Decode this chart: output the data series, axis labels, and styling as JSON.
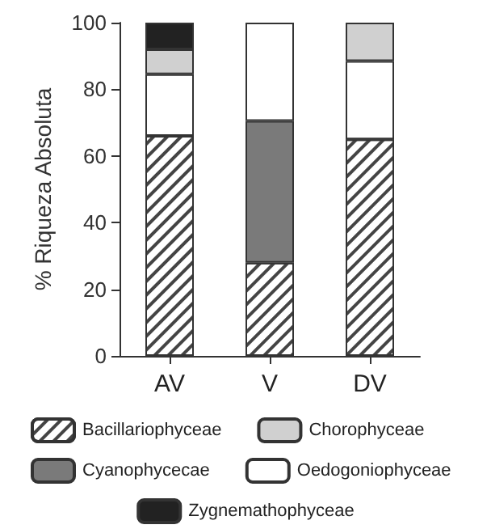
{
  "chart_data": {
    "type": "bar",
    "stacked": true,
    "ylabel": "% Riqueza Absoluta",
    "categories": [
      "AV",
      "V",
      "DV"
    ],
    "series": [
      {
        "name": "Bacillariophyceae",
        "color": "#ffffff",
        "values": [
          66,
          28,
          65
        ]
      },
      {
        "name": "Cyanophycecae",
        "color": "#7a7a7a",
        "values": [
          null,
          42.5,
          null
        ]
      },
      {
        "name": "Oedogoniophyceae",
        "color": "#ffffff",
        "values": [
          18.5,
          29.5,
          23.5
        ]
      },
      {
        "name": "Chorophyceae",
        "color": "#d0d0d0",
        "values": [
          7.5,
          null,
          11.5
        ]
      },
      {
        "name": "Zygnemathophyceae",
        "color": "#222222",
        "values": [
          8,
          null,
          null
        ]
      }
    ],
    "ylim": [
      0,
      100
    ],
    "yticks": [
      0,
      20,
      40,
      60,
      80,
      100
    ],
    "grid": false,
    "legend": "bottom"
  }
}
